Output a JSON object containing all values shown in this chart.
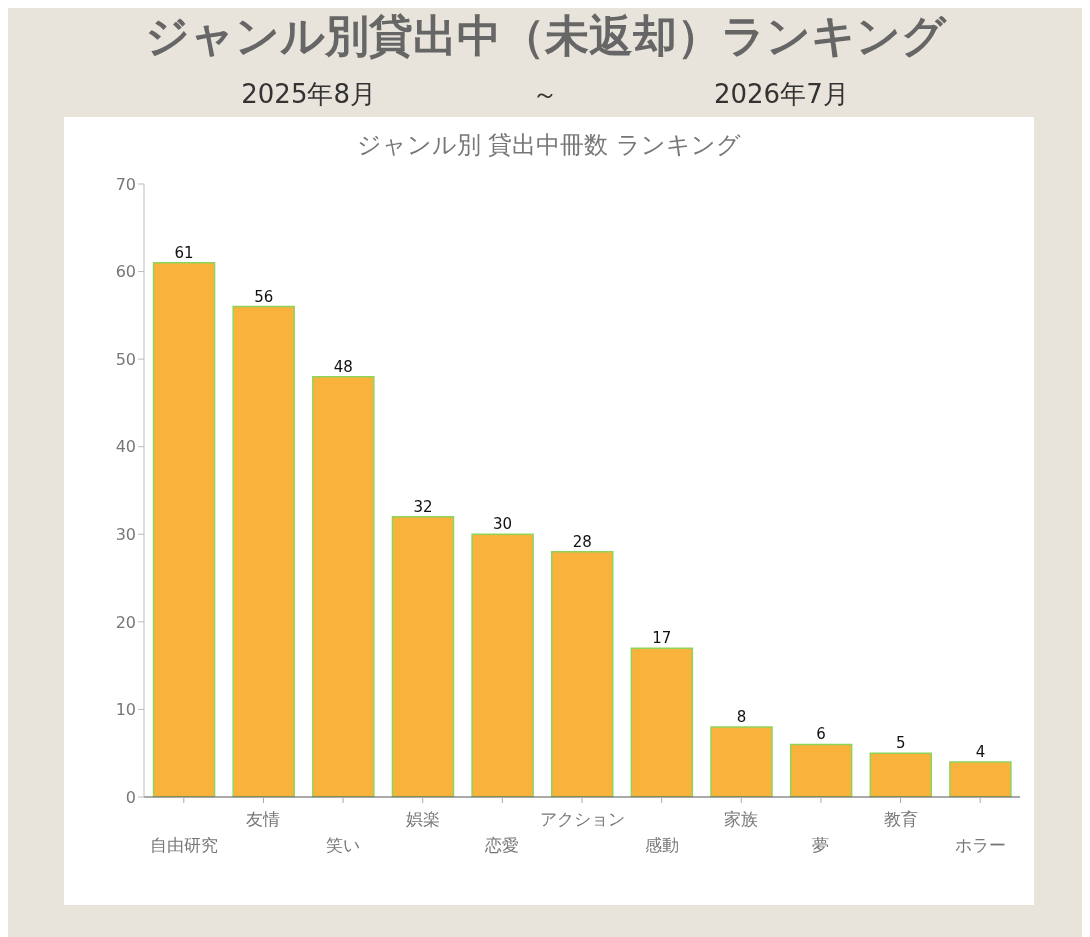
{
  "chart_data": {
    "type": "bar",
    "title": "ジャンル別貸出中（未返却）ランキング",
    "subtitle": "2025年8月　　　　　　～　　　　　　2026年7月",
    "annotations": [
      "ジャンル別 貸出中冊数 ランキング"
    ],
    "categories": [
      "自由研究",
      "友情",
      "笑い",
      "娯楽",
      "恋愛",
      "アクション",
      "感動",
      "家族",
      "夢",
      "教育",
      "ホラー"
    ],
    "values": [
      61,
      56,
      48,
      32,
      30,
      28,
      17,
      8,
      6,
      5,
      4
    ],
    "color": "#f9b23c",
    "ylim": [
      0,
      70
    ],
    "yticks": [
      0,
      10,
      20,
      30,
      40,
      50,
      60,
      70
    ],
    "grid": false,
    "legend": false,
    "data_labels": true
  }
}
